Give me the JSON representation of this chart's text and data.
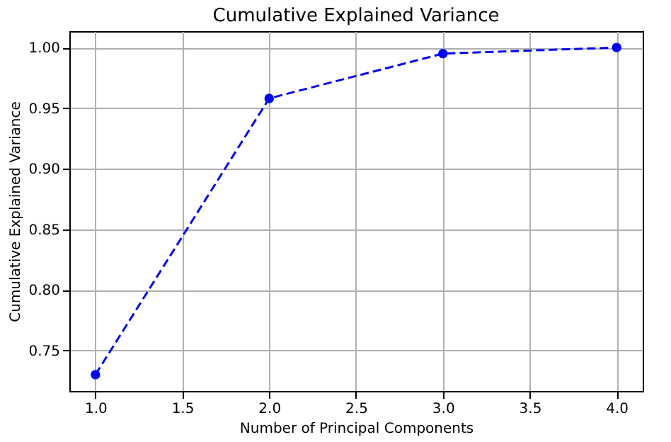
{
  "chart_data": {
    "type": "line",
    "title": "Cumulative Explained Variance",
    "xlabel": "Number of Principal Components",
    "ylabel": "Cumulative Explained Variance",
    "x": [
      1,
      2,
      3,
      4
    ],
    "series": [
      {
        "color": "#0000ff",
        "values": [
          0.73,
          0.958,
          0.995,
          1.0
        ]
      }
    ],
    "xlim": [
      0.85,
      4.15
    ],
    "xticks": [
      {
        "value": 1,
        "label": "1.0"
      },
      {
        "value": 1.5,
        "label": "1.5"
      },
      {
        "value": 2,
        "label": "2.0"
      },
      {
        "value": 2.5,
        "label": "2.5"
      },
      {
        "value": 3,
        "label": "3.0"
      },
      {
        "value": 3.5,
        "label": "3.5"
      },
      {
        "value": 4,
        "label": "4.0"
      }
    ],
    "ylim": [
      0.7165,
      1.0135
    ],
    "yticks": [
      {
        "value": 0.75,
        "label": "0.75"
      },
      {
        "value": 0.8,
        "label": "0.80"
      },
      {
        "value": 0.85,
        "label": "0.85"
      },
      {
        "value": 0.9,
        "label": "0.90"
      },
      {
        "value": 0.95,
        "label": "0.95"
      },
      {
        "value": 1.0,
        "label": "1.00"
      }
    ],
    "grid": true,
    "marker": "circle",
    "line_style": "dashed"
  }
}
